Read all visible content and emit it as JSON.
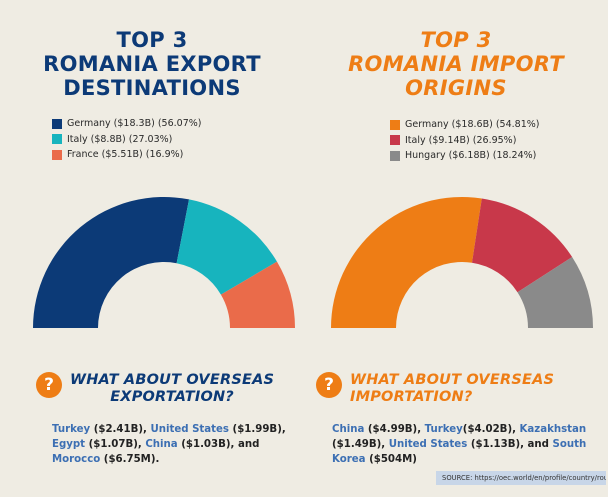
{
  "left": {
    "title": [
      "TOP 3",
      "ROMANIA EXPORT",
      "DESTINATIONS"
    ],
    "legend": [
      {
        "label": "Germany ($18.3B) (56.07%)",
        "color": "#0c3a77"
      },
      {
        "label": "Italy ($8.8B) (27.03%)",
        "color": "#17b4be"
      },
      {
        "label": "France ($5.51B) (16.9%)",
        "color": "#ea6b4a"
      }
    ],
    "question": [
      "WHAT ABOUT OVERSEAS",
      "EXPORTATION?"
    ],
    "overseas": [
      {
        "country": "Turkey",
        "value": " ($2.41B), "
      },
      {
        "country": "United States",
        "value": " ($1.99B), "
      },
      {
        "country": "Egypt",
        "value": " ($1.07B), "
      },
      {
        "country": "China",
        "value": " ($1.03B), and "
      },
      {
        "country": "Morocco",
        "value": " ($6.75M)."
      }
    ]
  },
  "right": {
    "title": [
      "TOP 3",
      "ROMANIA IMPORT",
      "ORIGINS"
    ],
    "legend": [
      {
        "label": "Germany ($18.6B) (54.81%)",
        "color": "#ee7d15"
      },
      {
        "label": "Italy ($9.14B) (26.95%)",
        "color": "#c8384a"
      },
      {
        "label": "Hungary ($6.18B) (18.24%)",
        "color": "#8a8a8a"
      }
    ],
    "question": [
      "WHAT ABOUT OVERSEAS",
      "IMPORTATION?"
    ],
    "overseas": [
      {
        "country": "China",
        "value": " ($4.99B), "
      },
      {
        "country": "Turkey",
        "value": "($4.02B), "
      },
      {
        "country": "Kazakhstan",
        "value": " ($1.49B), "
      },
      {
        "country": "United States",
        "value": " ($1.13B), and "
      },
      {
        "country": "South Korea",
        "value": " ($504M)"
      }
    ]
  },
  "source": "SOURCE: https://oec.world/en/profile/country/rou",
  "chart_data": [
    {
      "type": "pie",
      "title": "TOP 3 ROMANIA EXPORT DESTINATIONS",
      "style": "half-donut",
      "categories": [
        "Germany",
        "Italy",
        "France"
      ],
      "values": [
        18.3,
        8.8,
        5.51
      ],
      "percent": [
        56.07,
        27.03,
        16.9
      ],
      "colors": [
        "#0c3a77",
        "#17b4be",
        "#ea6b4a"
      ],
      "legend": "top"
    },
    {
      "type": "pie",
      "title": "TOP 3 ROMANIA IMPORT ORIGINS",
      "style": "half-donut",
      "categories": [
        "Germany",
        "Italy",
        "Hungary"
      ],
      "values": [
        18.6,
        9.14,
        6.18
      ],
      "percent": [
        54.81,
        26.95,
        18.24
      ],
      "colors": [
        "#ee7d15",
        "#c8384a",
        "#8a8a8a"
      ],
      "legend": "top"
    }
  ]
}
